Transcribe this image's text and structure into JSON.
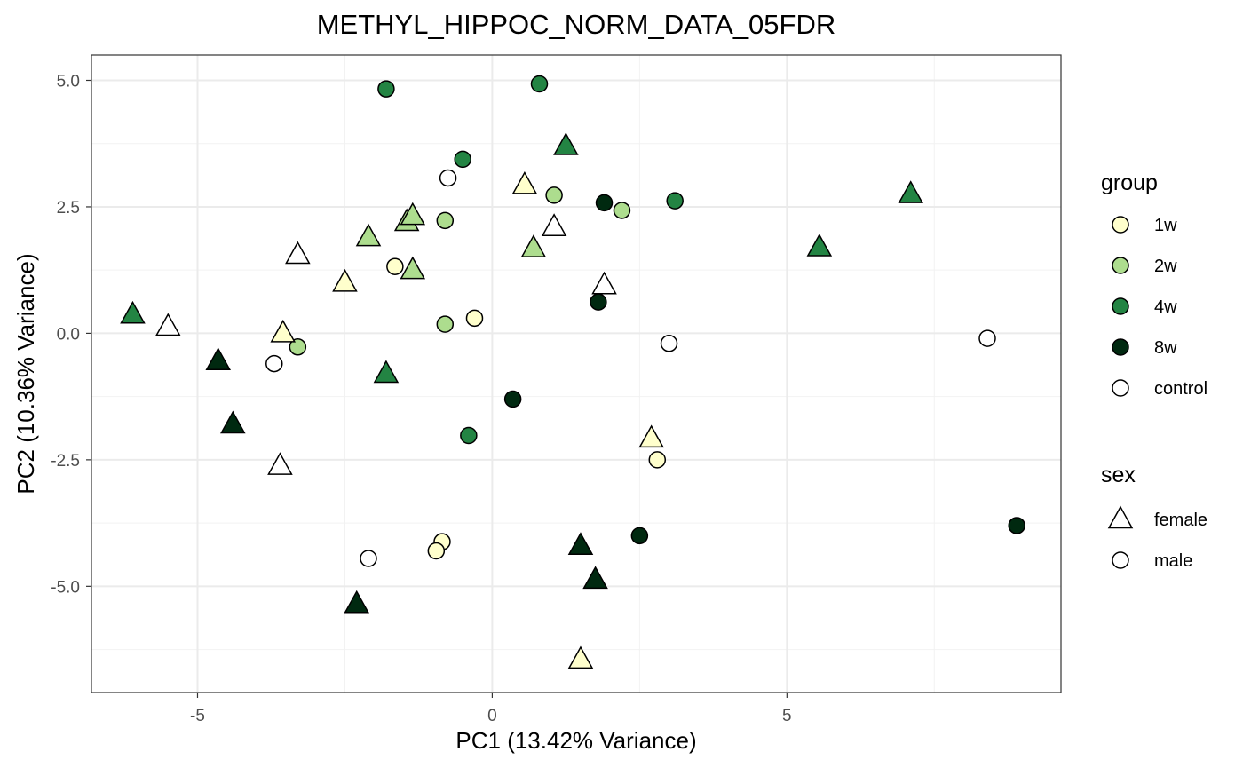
{
  "chart_data": {
    "type": "scatter",
    "title": "METHYL_HIPPOC_NORM_DATA_05FDR",
    "xlabel": "PC1 (13.42% Variance)",
    "ylabel": "PC2 (10.36% Variance)",
    "xlim": [
      -6.8,
      9.65
    ],
    "ylim": [
      -7.1,
      5.5
    ],
    "x_ticks": [
      -5,
      0,
      5
    ],
    "y_ticks": [
      -5.0,
      -2.5,
      0.0,
      2.5,
      5.0
    ],
    "x_tick_labels": [
      "-5",
      "0",
      "5"
    ],
    "y_tick_labels": [
      "-5.0",
      "-2.5",
      "0.0",
      "2.5",
      "5.0"
    ],
    "grid": true,
    "legend_position": "right",
    "colors": {
      "1w": "#ffffcc",
      "2w": "#addd8e",
      "4w": "#238443",
      "8w": "#002910",
      "control": "#ffffff"
    },
    "legends": [
      {
        "title": "group",
        "entries": [
          "1w",
          "2w",
          "4w",
          "8w",
          "control"
        ]
      },
      {
        "title": "sex",
        "entries": [
          "female",
          "male"
        ]
      }
    ],
    "points": [
      {
        "x": -1.8,
        "y": 4.83,
        "group": "4w",
        "sex": "male"
      },
      {
        "x": 0.8,
        "y": 4.93,
        "group": "4w",
        "sex": "male"
      },
      {
        "x": -0.5,
        "y": 3.44,
        "group": "4w",
        "sex": "male"
      },
      {
        "x": 3.1,
        "y": 2.62,
        "group": "4w",
        "sex": "male"
      },
      {
        "x": -0.4,
        "y": -2.02,
        "group": "4w",
        "sex": "male"
      },
      {
        "x": 1.25,
        "y": 3.7,
        "group": "4w",
        "sex": "female"
      },
      {
        "x": 7.1,
        "y": 2.75,
        "group": "4w",
        "sex": "female"
      },
      {
        "x": 5.55,
        "y": 1.7,
        "group": "4w",
        "sex": "female"
      },
      {
        "x": -6.1,
        "y": 0.37,
        "group": "4w",
        "sex": "female"
      },
      {
        "x": -1.8,
        "y": -0.8,
        "group": "4w",
        "sex": "female"
      },
      {
        "x": -0.75,
        "y": 3.07,
        "group": "control",
        "sex": "male"
      },
      {
        "x": -3.7,
        "y": -0.6,
        "group": "control",
        "sex": "male"
      },
      {
        "x": 3.0,
        "y": -0.2,
        "group": "control",
        "sex": "male"
      },
      {
        "x": 8.4,
        "y": -0.1,
        "group": "control",
        "sex": "male"
      },
      {
        "x": -2.1,
        "y": -4.45,
        "group": "control",
        "sex": "male"
      },
      {
        "x": -3.3,
        "y": 1.55,
        "group": "control",
        "sex": "female"
      },
      {
        "x": -5.5,
        "y": 0.13,
        "group": "control",
        "sex": "female"
      },
      {
        "x": 1.05,
        "y": 2.1,
        "group": "control",
        "sex": "female"
      },
      {
        "x": 1.9,
        "y": 0.95,
        "group": "control",
        "sex": "female"
      },
      {
        "x": -3.6,
        "y": -2.62,
        "group": "control",
        "sex": "female"
      },
      {
        "x": 1.05,
        "y": 2.73,
        "group": "2w",
        "sex": "male"
      },
      {
        "x": 2.2,
        "y": 2.43,
        "group": "2w",
        "sex": "male"
      },
      {
        "x": -0.8,
        "y": 2.23,
        "group": "2w",
        "sex": "male"
      },
      {
        "x": -0.8,
        "y": 0.18,
        "group": "2w",
        "sex": "male"
      },
      {
        "x": -3.3,
        "y": -0.27,
        "group": "2w",
        "sex": "male"
      },
      {
        "x": -2.1,
        "y": 1.9,
        "group": "2w",
        "sex": "female"
      },
      {
        "x": -1.45,
        "y": 2.2,
        "group": "2w",
        "sex": "female"
      },
      {
        "x": -1.35,
        "y": 2.32,
        "group": "2w",
        "sex": "female"
      },
      {
        "x": -1.35,
        "y": 1.25,
        "group": "2w",
        "sex": "female"
      },
      {
        "x": 0.7,
        "y": 1.68,
        "group": "2w",
        "sex": "female"
      },
      {
        "x": -1.65,
        "y": 1.32,
        "group": "1w",
        "sex": "male"
      },
      {
        "x": -0.3,
        "y": 0.3,
        "group": "1w",
        "sex": "male"
      },
      {
        "x": 2.8,
        "y": -2.5,
        "group": "1w",
        "sex": "male"
      },
      {
        "x": -0.85,
        "y": -4.12,
        "group": "1w",
        "sex": "male"
      },
      {
        "x": -0.95,
        "y": -4.3,
        "group": "1w",
        "sex": "male"
      },
      {
        "x": 0.55,
        "y": 2.93,
        "group": "1w",
        "sex": "female"
      },
      {
        "x": -2.5,
        "y": 1.0,
        "group": "1w",
        "sex": "female"
      },
      {
        "x": -3.55,
        "y": 0.0,
        "group": "1w",
        "sex": "female"
      },
      {
        "x": 2.7,
        "y": -2.08,
        "group": "1w",
        "sex": "female"
      },
      {
        "x": 1.5,
        "y": -6.45,
        "group": "1w",
        "sex": "female"
      },
      {
        "x": 1.9,
        "y": 2.58,
        "group": "8w",
        "sex": "male"
      },
      {
        "x": 1.8,
        "y": 0.62,
        "group": "8w",
        "sex": "male"
      },
      {
        "x": 0.35,
        "y": -1.3,
        "group": "8w",
        "sex": "male"
      },
      {
        "x": 2.5,
        "y": -4.0,
        "group": "8w",
        "sex": "male"
      },
      {
        "x": 8.9,
        "y": -3.8,
        "group": "8w",
        "sex": "male"
      },
      {
        "x": -4.65,
        "y": -0.55,
        "group": "8w",
        "sex": "female"
      },
      {
        "x": -4.4,
        "y": -1.8,
        "group": "8w",
        "sex": "female"
      },
      {
        "x": 1.5,
        "y": -4.2,
        "group": "8w",
        "sex": "female"
      },
      {
        "x": 1.75,
        "y": -4.87,
        "group": "8w",
        "sex": "female"
      },
      {
        "x": -2.3,
        "y": -5.35,
        "group": "8w",
        "sex": "female"
      }
    ]
  }
}
